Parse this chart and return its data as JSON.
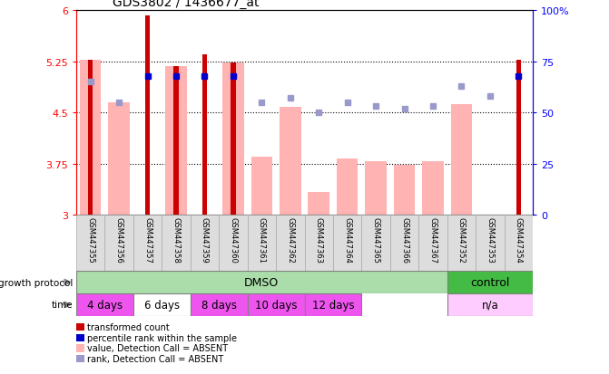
{
  "title": "GDS3802 / 1436677_at",
  "samples": [
    "GSM447355",
    "GSM447356",
    "GSM447357",
    "GSM447358",
    "GSM447359",
    "GSM447360",
    "GSM447361",
    "GSM447362",
    "GSM447363",
    "GSM447364",
    "GSM447365",
    "GSM447366",
    "GSM447367",
    "GSM447352",
    "GSM447353",
    "GSM447354"
  ],
  "transformed_count": [
    5.28,
    null,
    5.93,
    5.18,
    5.36,
    5.24,
    null,
    null,
    null,
    null,
    null,
    null,
    null,
    null,
    null,
    5.28
  ],
  "value_absent": [
    5.28,
    4.65,
    null,
    5.18,
    null,
    5.24,
    3.85,
    4.58,
    3.33,
    3.83,
    3.78,
    3.73,
    3.78,
    4.62,
    null,
    null
  ],
  "percentile_present": [
    null,
    null,
    68,
    68,
    68,
    68,
    null,
    null,
    null,
    null,
    null,
    null,
    null,
    null,
    null,
    68
  ],
  "rank_absent": [
    65,
    55,
    null,
    null,
    null,
    null,
    55,
    57,
    50,
    55,
    53,
    52,
    53,
    63,
    58,
    null
  ],
  "ylim": [
    3,
    6
  ],
  "yticks": [
    3,
    3.75,
    4.5,
    5.25,
    6
  ],
  "ytick_labels": [
    "3",
    "3.75",
    "4.5",
    "5.25",
    "6"
  ],
  "y2lim": [
    0,
    100
  ],
  "y2ticks": [
    0,
    25,
    50,
    75,
    100
  ],
  "y2tick_labels": [
    "0",
    "25",
    "50",
    "75",
    "100%"
  ],
  "bar_color_dark": "#cc0000",
  "bar_color_light": "#ffb3b3",
  "dot_color_dark": "#0000cc",
  "dot_color_light": "#9999cc",
  "growth_protocol_label": "growth protocol",
  "protocol_dmso": "DMSO",
  "protocol_control": "control",
  "time_label": "time",
  "time_groups": [
    {
      "label": "4 days",
      "start": 0,
      "end": 2,
      "color": "#ee55ee"
    },
    {
      "label": "6 days",
      "start": 2,
      "end": 4,
      "color": "#ffffff"
    },
    {
      "label": "8 days",
      "start": 4,
      "end": 6,
      "color": "#ee55ee"
    },
    {
      "label": "10 days",
      "start": 6,
      "end": 8,
      "color": "#ee55ee"
    },
    {
      "label": "12 days",
      "start": 8,
      "end": 10,
      "color": "#ee55ee"
    },
    {
      "label": "n/a",
      "start": 13,
      "end": 16,
      "color": "#ffccff"
    }
  ],
  "dmso_range": [
    0,
    13
  ],
  "control_range": [
    13,
    16
  ],
  "legend_items": [
    {
      "label": "transformed count",
      "color": "#cc0000"
    },
    {
      "label": "percentile rank within the sample",
      "color": "#0000cc"
    },
    {
      "label": "value, Detection Call = ABSENT",
      "color": "#ffb3b3"
    },
    {
      "label": "rank, Detection Call = ABSENT",
      "color": "#9999cc"
    }
  ],
  "protocol_dmso_color": "#aaddaa",
  "protocol_control_color": "#44bb44",
  "sample_cell_color": "#dddddd",
  "sample_cell_edge": "#aaaaaa"
}
